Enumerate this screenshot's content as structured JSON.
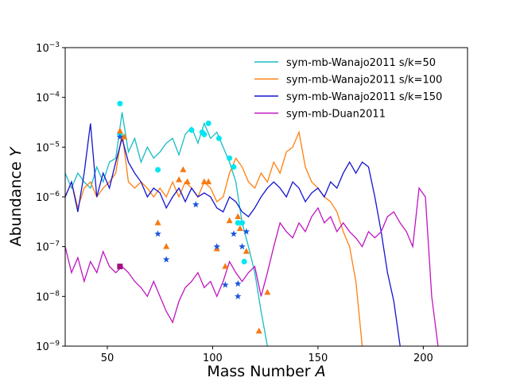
{
  "chart_data": {
    "type": "line",
    "xlabel": "Mass Number A",
    "ylabel": "Abundance Y",
    "yscale": "log",
    "legend": "upper right",
    "xlim": [
      30,
      221
    ],
    "xticks": [
      50,
      100,
      150,
      200
    ],
    "ylim": [
      1e-09,
      0.001
    ],
    "yticks": [
      {
        "value": 1e-09,
        "label": "10−9"
      },
      {
        "value": 1e-08,
        "label": "10−8"
      },
      {
        "value": 1e-07,
        "label": "10−7"
      },
      {
        "value": 1e-06,
        "label": "10−6"
      },
      {
        "value": 1e-05,
        "label": "10−5"
      },
      {
        "value": 0.0001,
        "label": "10−4"
      },
      {
        "value": 0.001,
        "label": "10−3"
      }
    ],
    "x": [
      30,
      33,
      36,
      39,
      42,
      45,
      48,
      51,
      54,
      57,
      60,
      63,
      66,
      69,
      72,
      75,
      78,
      81,
      84,
      87,
      90,
      93,
      96,
      99,
      102,
      105,
      108,
      111,
      114,
      117,
      120,
      123,
      126,
      129,
      132,
      135,
      138,
      141,
      144,
      147,
      150,
      153,
      156,
      159,
      162,
      165,
      168,
      171,
      174,
      177,
      180,
      183,
      186,
      189,
      192,
      195,
      198,
      201,
      204,
      207
    ],
    "series": [
      {
        "name": "sym-mb-Wanajo2011 s/k=50",
        "color": "#17bcc4",
        "values": [
          3e-06,
          1.5e-06,
          3e-06,
          2e-06,
          1.5e-06,
          4e-06,
          2e-06,
          5e-06,
          6e-06,
          5e-05,
          8e-06,
          1.5e-05,
          5e-06,
          1e-05,
          6e-06,
          8e-06,
          1.2e-05,
          1.5e-05,
          7e-06,
          1.8e-05,
          2.5e-05,
          1.2e-05,
          3e-05,
          1.5e-05,
          2e-05,
          1e-05,
          5e-06,
          2e-06,
          3e-07,
          1e-07,
          3e-08,
          5e-09,
          1e-09,
          null,
          null,
          null,
          null,
          null,
          null,
          null,
          null,
          null,
          null,
          null,
          null,
          null,
          null,
          null,
          null,
          null,
          null,
          null,
          null,
          null,
          null,
          null,
          null,
          null,
          null,
          null
        ]
      },
      {
        "name": "sym-mb-Wanajo2011 s/k=100",
        "color": "#ff7f0e",
        "values": [
          1e-06,
          2e-06,
          6e-07,
          1.5e-06,
          2e-06,
          1e-06,
          1.5e-06,
          2e-06,
          3e-06,
          2e-05,
          2e-06,
          1.5e-06,
          2e-06,
          1.5e-06,
          1e-06,
          1.5e-06,
          1e-06,
          2e-06,
          1e-06,
          2e-06,
          1.5e-06,
          1e-06,
          2e-06,
          1.5e-06,
          8e-07,
          1e-06,
          3e-06,
          6e-06,
          4e-06,
          2e-06,
          1.5e-06,
          3e-06,
          2e-06,
          5e-06,
          3e-06,
          8e-06,
          1e-05,
          2e-05,
          4e-06,
          2e-06,
          1.5e-06,
          1e-06,
          8e-07,
          5e-07,
          2e-07,
          1e-07,
          2e-08,
          1e-09,
          null,
          null,
          null,
          null,
          null,
          null,
          null,
          null,
          null,
          null,
          null,
          null
        ]
      },
      {
        "name": "sym-mb-Wanajo2011 s/k=150",
        "color": "#1414d2",
        "values": [
          1e-06,
          2e-06,
          5e-07,
          3e-06,
          3e-05,
          1e-06,
          3e-06,
          1.5e-06,
          5e-06,
          1.5e-05,
          5e-06,
          3e-06,
          2e-06,
          1e-06,
          1.5e-06,
          1.2e-06,
          6e-07,
          1e-06,
          1.5e-06,
          8e-07,
          1.5e-06,
          1e-06,
          1.2e-06,
          1e-06,
          6e-07,
          5e-07,
          1e-06,
          8e-07,
          5e-07,
          4e-07,
          6e-07,
          1e-06,
          1.5e-06,
          2e-06,
          1.5e-06,
          1e-06,
          2e-06,
          1.5e-06,
          8e-07,
          1.2e-06,
          1.5e-06,
          1e-06,
          2e-06,
          1.5e-06,
          3e-06,
          5e-06,
          3e-06,
          5e-06,
          4e-06,
          1e-06,
          2e-07,
          3e-08,
          8e-09,
          1e-09,
          null,
          null,
          null,
          null,
          null,
          null
        ]
      },
      {
        "name": "sym-mb-Duan2011",
        "color": "#bf15bf",
        "values": [
          1e-07,
          3e-08,
          6e-08,
          2e-08,
          5e-08,
          3e-08,
          8e-08,
          4e-08,
          3e-08,
          4e-08,
          3e-08,
          2e-08,
          1.5e-08,
          1e-08,
          2e-08,
          1e-08,
          5e-09,
          3e-09,
          8e-09,
          1.5e-08,
          2e-08,
          3e-08,
          1.5e-08,
          2e-08,
          1e-08,
          2e-08,
          5e-08,
          3e-08,
          2e-08,
          3e-08,
          4e-08,
          1e-08,
          3e-08,
          1e-07,
          3e-07,
          2e-07,
          1.5e-07,
          3e-07,
          2e-07,
          4e-07,
          6e-07,
          3e-07,
          4e-07,
          2e-07,
          3e-07,
          2e-07,
          1.5e-07,
          1e-07,
          2e-07,
          1.5e-07,
          2e-07,
          4e-07,
          5e-07,
          3e-07,
          2e-07,
          1e-07,
          1.5e-06,
          1e-06,
          1e-08,
          1e-09
        ]
      }
    ],
    "points": [
      {
        "marker": "circle",
        "color": "#00e6f0",
        "x": [
          56,
          56,
          74,
          90,
          95,
          96,
          98,
          103,
          108,
          110,
          112,
          114,
          115
        ],
        "values": [
          7.5e-05,
          1.8e-05,
          3.5e-06,
          2.2e-05,
          2e-05,
          1.8e-05,
          3e-05,
          1.5e-05,
          6e-06,
          4e-06,
          3e-07,
          3e-07,
          5e-08
        ]
      },
      {
        "marker": "triangle",
        "color": "#f57a14",
        "x": [
          56,
          58,
          74,
          78,
          84,
          86,
          88,
          96,
          98,
          102,
          106,
          108,
          112,
          113,
          116,
          122,
          126
        ],
        "values": [
          2.1e-05,
          1.6e-05,
          3e-07,
          1e-07,
          2.2e-06,
          3.5e-06,
          2e-06,
          2e-06,
          2e-06,
          9e-08,
          4e-08,
          3.3e-07,
          4e-07,
          2.3e-07,
          8e-08,
          2e-09,
          1.2e-08
        ]
      },
      {
        "marker": "star",
        "color": "#1a56db",
        "x": [
          56,
          74,
          78,
          92,
          102,
          106,
          110,
          112,
          112,
          114,
          116
        ],
        "values": [
          1.6e-05,
          1.8e-07,
          5.5e-08,
          7e-07,
          1e-07,
          1.7e-08,
          1.8e-07,
          1.8e-08,
          1e-08,
          1e-07,
          2e-07
        ]
      },
      {
        "marker": "square",
        "color": "#a0107f",
        "x": [
          56
        ],
        "values": [
          4e-08
        ]
      }
    ]
  }
}
